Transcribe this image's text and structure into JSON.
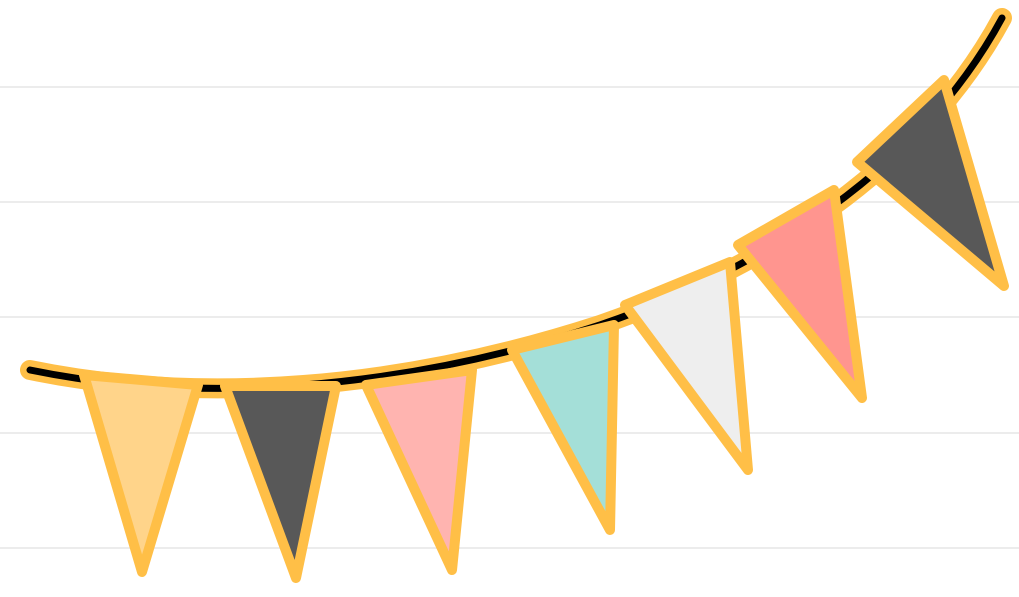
{
  "canvas": {
    "background": "#ffffff",
    "ruled_line_color": "#ececec"
  },
  "garland": {
    "icon": "bunting-banner-icon",
    "outline_color": "#ffbf47",
    "string_color": "#000000",
    "flag_count": 7,
    "flags": [
      {
        "color": "#ffd48a"
      },
      {
        "color": "#585858"
      },
      {
        "color": "#ffb4b0"
      },
      {
        "color": "#a4dfd8"
      },
      {
        "color": "#eeeeee"
      },
      {
        "color": "#ff958f"
      },
      {
        "color": "#585858"
      }
    ]
  }
}
